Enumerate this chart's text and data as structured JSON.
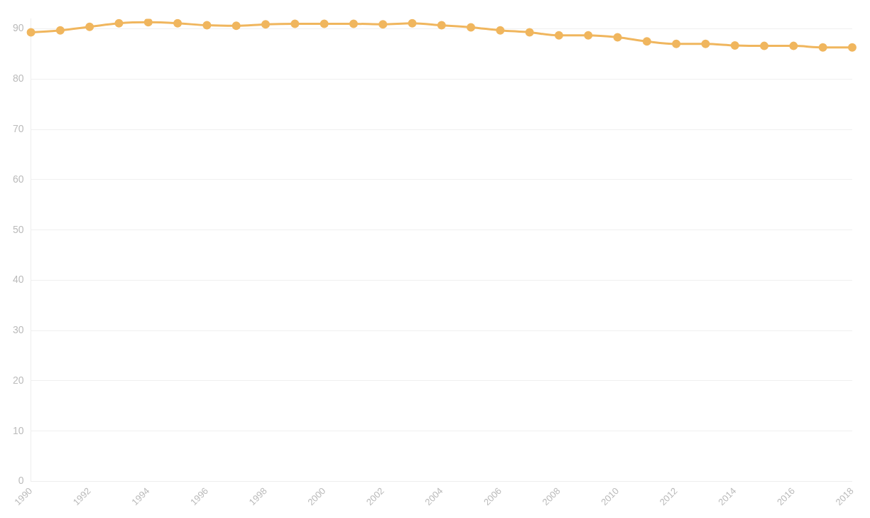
{
  "chart_data": {
    "type": "line",
    "categories": [
      "1990",
      null,
      "1992",
      null,
      "1994",
      null,
      "1996",
      null,
      "1998",
      null,
      "2000",
      null,
      "2002",
      null,
      "2004",
      null,
      "2006",
      null,
      "2008",
      null,
      "2010",
      null,
      "2012",
      null,
      "2014",
      null,
      "2016",
      null,
      "2018"
    ],
    "series": [
      {
        "color": "#f0b65e",
        "values": [
          89.3,
          89.7,
          90.4,
          91.1,
          91.3,
          91.1,
          90.7,
          90.6,
          90.9,
          91.0,
          91.0,
          91.0,
          90.9,
          91.1,
          90.7,
          90.3,
          89.7,
          89.3,
          88.7,
          88.7,
          88.3,
          87.5,
          87.0,
          87.0,
          86.7,
          86.6,
          86.6,
          86.3,
          86.3
        ]
      }
    ],
    "ylim": [
      0,
      92
    ],
    "yticks": [
      0,
      10,
      20,
      30,
      40,
      50,
      60,
      70,
      80,
      90
    ],
    "grid": "y",
    "legend": false,
    "marker": "circle",
    "line_style": "solid"
  }
}
